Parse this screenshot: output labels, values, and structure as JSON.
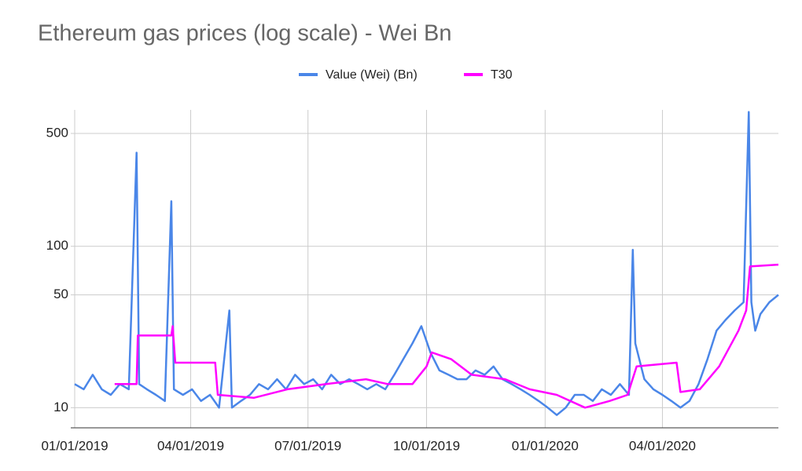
{
  "chart_data": {
    "type": "line",
    "title": "Ethereum gas prices (log scale) - Wei Bn",
    "log_scale": true,
    "grid": true,
    "legend": "top",
    "xlim": [
      "01/01/2019",
      "06/30/2020"
    ],
    "xticks": [
      "01/01/2019",
      "04/01/2019",
      "07/01/2019",
      "10/01/2019",
      "01/01/2020",
      "04/01/2020"
    ],
    "ylim": [
      7.5,
      700
    ],
    "yticks": [
      10,
      50,
      100,
      500
    ],
    "series": [
      {
        "name": "Value (Wei) (Bn)",
        "color": "#4a86e8",
        "x": [
          "01/01/2019",
          "01/08/2019",
          "01/15/2019",
          "01/22/2019",
          "01/29/2019",
          "02/05/2019",
          "02/12/2019",
          "02/18/2019",
          "02/20/2019",
          "02/26/2019",
          "03/05/2019",
          "03/12/2019",
          "03/17/2019",
          "03/19/2019",
          "03/26/2019",
          "04/02/2019",
          "04/09/2019",
          "04/16/2019",
          "04/23/2019",
          "05/01/2019",
          "05/03/2019",
          "05/10/2019",
          "05/17/2019",
          "05/24/2019",
          "05/31/2019",
          "06/07/2019",
          "06/14/2019",
          "06/21/2019",
          "06/28/2019",
          "07/05/2019",
          "07/12/2019",
          "07/19/2019",
          "07/26/2019",
          "08/02/2019",
          "08/09/2019",
          "08/16/2019",
          "08/23/2019",
          "08/30/2019",
          "09/06/2019",
          "09/13/2019",
          "09/20/2019",
          "09/27/2019",
          "10/04/2019",
          "10/11/2019",
          "10/18/2019",
          "10/25/2019",
          "11/01/2019",
          "11/08/2019",
          "11/15/2019",
          "11/22/2019",
          "11/29/2019",
          "12/06/2019",
          "12/13/2019",
          "12/20/2019",
          "12/27/2019",
          "01/03/2020",
          "01/10/2020",
          "01/17/2020",
          "01/24/2020",
          "01/31/2020",
          "02/07/2020",
          "02/14/2020",
          "02/21/2020",
          "02/28/2020",
          "03/06/2020",
          "03/09/2020",
          "03/11/2020",
          "03/18/2020",
          "03/25/2020",
          "04/01/2020",
          "04/08/2020",
          "04/15/2020",
          "04/22/2020",
          "04/29/2020",
          "05/06/2020",
          "05/13/2020",
          "05/20/2020",
          "05/27/2020",
          "06/03/2020",
          "06/07/2020",
          "06/09/2020",
          "06/12/2020",
          "06/16/2020",
          "06/23/2020",
          "06/30/2020"
        ],
        "values": [
          14,
          13,
          16,
          13,
          12,
          14,
          13,
          380,
          14,
          13,
          12,
          11,
          190,
          13,
          12,
          13,
          11,
          12,
          10,
          40,
          10,
          11,
          12,
          14,
          13,
          15,
          13,
          16,
          14,
          15,
          13,
          16,
          14,
          15,
          14,
          13,
          14,
          13,
          16,
          20,
          25,
          32,
          22,
          17,
          16,
          15,
          15,
          17,
          16,
          18,
          15,
          14,
          13,
          12,
          11,
          10,
          9,
          10,
          12,
          12,
          11,
          13,
          12,
          14,
          12,
          95,
          25,
          15,
          13,
          12,
          11,
          10,
          11,
          14,
          20,
          30,
          35,
          40,
          45,
          680,
          45,
          30,
          38,
          45,
          50
        ]
      },
      {
        "name": "T30",
        "color": "#ff00ff",
        "x": [
          "02/01/2019",
          "02/18/2019",
          "02/19/2019",
          "03/17/2019",
          "03/18/2019",
          "03/20/2019",
          "04/20/2019",
          "04/22/2019",
          "05/20/2019",
          "06/15/2019",
          "07/15/2019",
          "08/15/2019",
          "09/01/2019",
          "09/20/2019",
          "10/01/2019",
          "10/05/2019",
          "10/20/2019",
          "11/05/2019",
          "12/01/2019",
          "12/20/2019",
          "01/10/2020",
          "02/01/2020",
          "02/20/2020",
          "03/05/2020",
          "03/12/2020",
          "04/12/2020",
          "04/15/2020",
          "04/30/2020",
          "05/15/2020",
          "05/30/2020",
          "06/05/2020",
          "06/08/2020",
          "06/30/2020"
        ],
        "values": [
          14,
          14,
          28,
          28,
          32,
          19,
          19,
          12,
          11.5,
          13,
          14,
          15,
          14,
          14,
          18,
          22,
          20,
          16,
          15,
          13,
          12,
          10,
          11,
          12,
          18,
          19,
          12.5,
          13,
          18,
          30,
          40,
          75,
          77
        ]
      }
    ]
  }
}
